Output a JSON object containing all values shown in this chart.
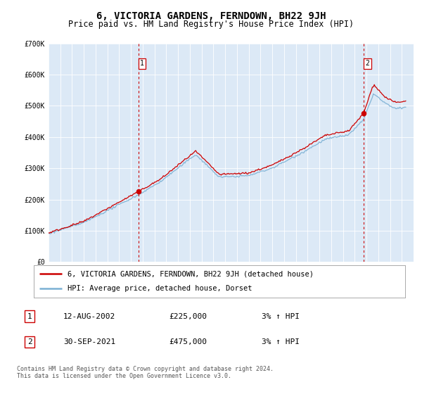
{
  "title": "6, VICTORIA GARDENS, FERNDOWN, BH22 9JH",
  "subtitle": "Price paid vs. HM Land Registry's House Price Index (HPI)",
  "background_color": "#ffffff",
  "plot_bg_color": "#dce9f6",
  "outer_bg_color": "#ffffff",
  "red_line_color": "#cc0000",
  "blue_line_color": "#7ab0d4",
  "marker_color": "#cc0000",
  "vline_color": "#cc0000",
  "ylim": [
    0,
    700000
  ],
  "yticks": [
    0,
    100000,
    200000,
    300000,
    400000,
    500000,
    600000,
    700000
  ],
  "ytick_labels": [
    "£0",
    "£100K",
    "£200K",
    "£300K",
    "£400K",
    "£500K",
    "£600K",
    "£700K"
  ],
  "x_start_year": 1995,
  "x_end_year": 2026,
  "transaction1_year": 2002.62,
  "transaction1_value": 225000,
  "transaction1_label": "1",
  "transaction2_year": 2021.75,
  "transaction2_value": 475000,
  "transaction2_label": "2",
  "legend_line1": "6, VICTORIA GARDENS, FERNDOWN, BH22 9JH (detached house)",
  "legend_line2": "HPI: Average price, detached house, Dorset",
  "table_row1_num": "1",
  "table_row1_date": "12-AUG-2002",
  "table_row1_price": "£225,000",
  "table_row1_hpi": "3% ↑ HPI",
  "table_row2_num": "2",
  "table_row2_date": "30-SEP-2021",
  "table_row2_price": "£475,000",
  "table_row2_hpi": "3% ↑ HPI",
  "footer": "Contains HM Land Registry data © Crown copyright and database right 2024.\nThis data is licensed under the Open Government Licence v3.0.",
  "title_fontsize": 10,
  "subtitle_fontsize": 8.5,
  "tick_fontsize": 7,
  "legend_fontsize": 7.5,
  "table_fontsize": 8,
  "footer_fontsize": 6
}
